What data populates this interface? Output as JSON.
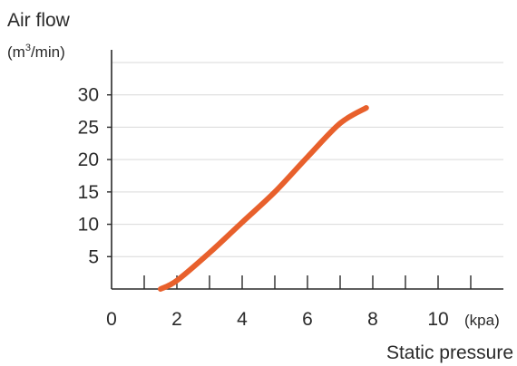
{
  "chart_data": {
    "type": "line",
    "ylabel": "Air flow",
    "ylabel_unit_prefix": "(m",
    "ylabel_unit_sup": "3",
    "ylabel_unit_suffix": "/min)",
    "xlabel": "Static pressure",
    "xunit": "(kpa)",
    "xlim": [
      0,
      12
    ],
    "ylim": [
      0,
      35
    ],
    "x_ticks": [
      0,
      1,
      2,
      3,
      4,
      5,
      6,
      7,
      8,
      9,
      10,
      11
    ],
    "x_tick_labels": [
      "0",
      "2",
      "4",
      "6",
      "8",
      "10"
    ],
    "y_tick_labels": [
      "5",
      "10",
      "15",
      "20",
      "25",
      "30"
    ],
    "grid": true,
    "series": [
      {
        "color": "#e8602c",
        "x": [
          1.5,
          2.0,
          3.0,
          4.0,
          5.0,
          6.0,
          7.0,
          7.8
        ],
        "y": [
          0,
          1.3,
          5.6,
          10.3,
          15.0,
          20.4,
          25.6,
          28.0
        ]
      }
    ]
  }
}
